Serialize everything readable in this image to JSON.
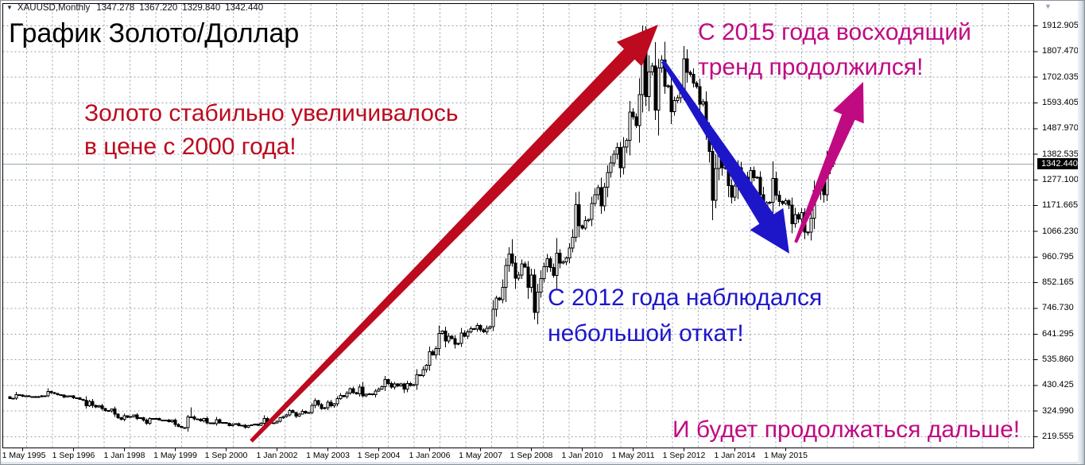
{
  "colors": {
    "accent_red": "#bd0a1e",
    "accent_blue": "#1d16c9",
    "accent_magenta": "#c00a82",
    "grid": "#97a3af",
    "candle": "#000000",
    "bull_fill": "#ffffff",
    "bear_fill": "#000000",
    "price_line": "#9aa6ae",
    "price_box_bg": "#000000",
    "price_box_text": "#ffffff",
    "axis": "#000000"
  },
  "chart_data": {
    "type": "candlestick",
    "title": "График Золото/Доллар",
    "header": {
      "symbol": "XAUUSD,Monthly",
      "ohlc": [
        "1347.278",
        "1367.220",
        "1329.840",
        "1342.440"
      ]
    },
    "timeframe": "Monthly",
    "grid": "dashed",
    "legend_position": "none",
    "y_axis_range": [
      219.555,
      1912.905
    ],
    "y_tick_labels": [
      "1912.905",
      "1807.470",
      "1702.035",
      "1593.405",
      "1487.970",
      "1382.535",
      "1277.100",
      "1171.665",
      "1066.230",
      "960.795",
      "852.165",
      "746.730",
      "641.295",
      "535.860",
      "430.425",
      "324.990",
      "219.555"
    ],
    "x_tick_labels": [
      "1 May 1995",
      "1 Sep 1996",
      "1 Jan 1998",
      "1 May 1999",
      "1 Sep 2000",
      "1 Jan 2002",
      "1 May 2003",
      "1 Sep 2004",
      "1 Jan 2006",
      "1 May 2007",
      "1 Sep 2008",
      "1 Jan 2010",
      "1 May 2011",
      "1 Sep 2012",
      "1 Jan 2014",
      "1 May 2015"
    ],
    "current_price": 1342.44,
    "current_price_label": "1342.440",
    "series": {
      "start": "1995-01",
      "interval_months": 1,
      "first_open": 383,
      "monthly_closes": [
        375,
        376,
        392,
        390,
        385,
        387,
        383,
        382,
        384,
        383,
        387,
        387,
        405,
        400,
        396,
        391,
        390,
        382,
        386,
        386,
        379,
        379,
        372,
        369,
        345,
        364,
        348,
        340,
        345,
        334,
        326,
        324,
        332,
        311,
        297,
        290,
        304,
        298,
        301,
        308,
        293,
        296,
        286,
        273,
        293,
        292,
        294,
        287,
        285,
        287,
        280,
        286,
        268,
        261,
        255,
        255,
        299,
        300,
        291,
        290,
        283,
        293,
        276,
        275,
        272,
        289,
        276,
        277,
        273,
        264,
        269,
        272,
        264,
        266,
        257,
        263,
        267,
        270,
        265,
        274,
        293,
        278,
        274,
        276,
        282,
        296,
        301,
        308,
        326,
        318,
        303,
        312,
        323,
        316,
        318,
        348,
        367,
        350,
        334,
        338,
        361,
        345,
        354,
        375,
        388,
        384,
        398,
        416,
        399,
        395,
        423,
        387,
        393,
        395,
        391,
        407,
        415,
        425,
        453,
        438,
        422,
        435,
        428,
        435,
        414,
        437,
        429,
        433,
        473,
        470,
        495,
        513,
        568,
        556,
        582,
        644,
        653,
        613,
        632,
        623,
        599,
        603,
        646,
        632,
        651,
        664,
        661,
        677,
        659,
        650,
        665,
        672,
        743,
        789,
        783,
        833,
        923,
        971,
        933,
        871,
        885,
        930,
        918,
        833,
        884,
        730,
        814,
        869,
        919,
        952,
        916,
        883,
        975,
        934,
        939,
        955,
        995,
        1040,
        1175,
        1087,
        1078,
        1108,
        1113,
        1179,
        1215,
        1244,
        1169,
        1246,
        1307,
        1346,
        1383,
        1410,
        1327,
        1411,
        1439,
        1556,
        1536,
        1500,
        1628,
        1826,
        1620,
        1722,
        1746,
        1564,
        1737,
        1770,
        1662,
        1664,
        1558,
        1604,
        1615,
        1648,
        1776,
        1720,
        1712,
        1675,
        1660,
        1588,
        1598,
        1469,
        1394,
        1192,
        1323,
        1396,
        1327,
        1324,
        1253,
        1205,
        1251,
        1326,
        1291,
        1288,
        1250,
        1315,
        1285,
        1287,
        1216,
        1164,
        1182,
        1184,
        1283,
        1213,
        1187,
        1180,
        1191,
        1172,
        1095,
        1134,
        1115,
        1142,
        1061,
        1061,
        1118,
        1234,
        1232,
        1292,
        1215,
        1322,
        1351,
        1342
      ],
      "high_overrides": {
        "57": 339,
        "158": 1032,
        "199": 1913,
        "259": 1367.22
      },
      "low_overrides": {
        "251": 1046,
        "259": 1329.84
      }
    },
    "arrows": [
      {
        "name": "uptrend-arrow",
        "color_key": "accent_red",
        "tail": [
          315,
          554
        ],
        "tip": [
          827,
          30
        ],
        "tail_width": 5,
        "shaft_width": 19,
        "head_width": 44,
        "head_length": 52
      },
      {
        "name": "pullback-arrow",
        "color_key": "accent_blue",
        "tail": [
          833,
          76
        ],
        "tip": [
          992,
          318
        ],
        "tail_width": 5,
        "shaft_width": 22,
        "head_width": 50,
        "head_length": 52
      },
      {
        "name": "continuation-arrow",
        "color_key": "accent_magenta",
        "tail": [
          1000,
          304
        ],
        "tip": [
          1085,
          102
        ],
        "tail_width": 4,
        "shaft_width": 18,
        "head_width": 42,
        "head_length": 48
      }
    ]
  },
  "annotations": {
    "uptrend": {
      "line1": "Золото стабильно увеличивалось",
      "line2": "в цене с 2000 года!"
    },
    "continuation": {
      "line1": "С 2015 года восходящий",
      "line2": "тренд продолжился!"
    },
    "pullback": {
      "line1": "С 2012 года наблюдался",
      "line2": "небольшой откат!"
    },
    "future": {
      "line1": "И будет продолжаться дальше!"
    }
  },
  "icons": {
    "symbol_menu": "▼",
    "shift_marker": "▼"
  }
}
